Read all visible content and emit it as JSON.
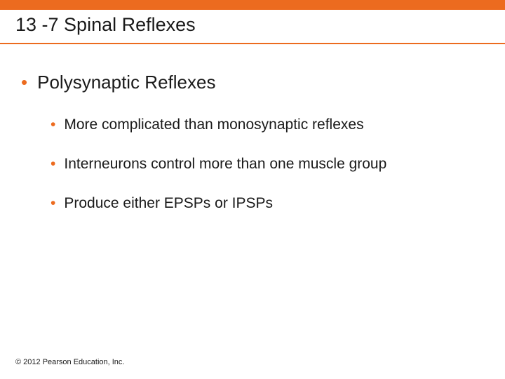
{
  "colors": {
    "accent": "#ec6b1f",
    "divider": "#ec6b1f",
    "text": "#1a1a1a",
    "background": "#ffffff"
  },
  "title": "13 -7 Spinal Reflexes",
  "bullets": {
    "level1": {
      "text": "Polysynaptic Reflexes",
      "bullet_color": "#ec6b1f"
    },
    "level2": [
      {
        "text": "More complicated than monosynaptic reflexes",
        "bullet_color": "#ec6b1f"
      },
      {
        "text": "Interneurons control more than one muscle group",
        "bullet_color": "#ec6b1f"
      },
      {
        "text": "Produce either EPSPs or IPSPs",
        "bullet_color": "#ec6b1f"
      }
    ]
  },
  "footer": "© 2012 Pearson Education, Inc."
}
